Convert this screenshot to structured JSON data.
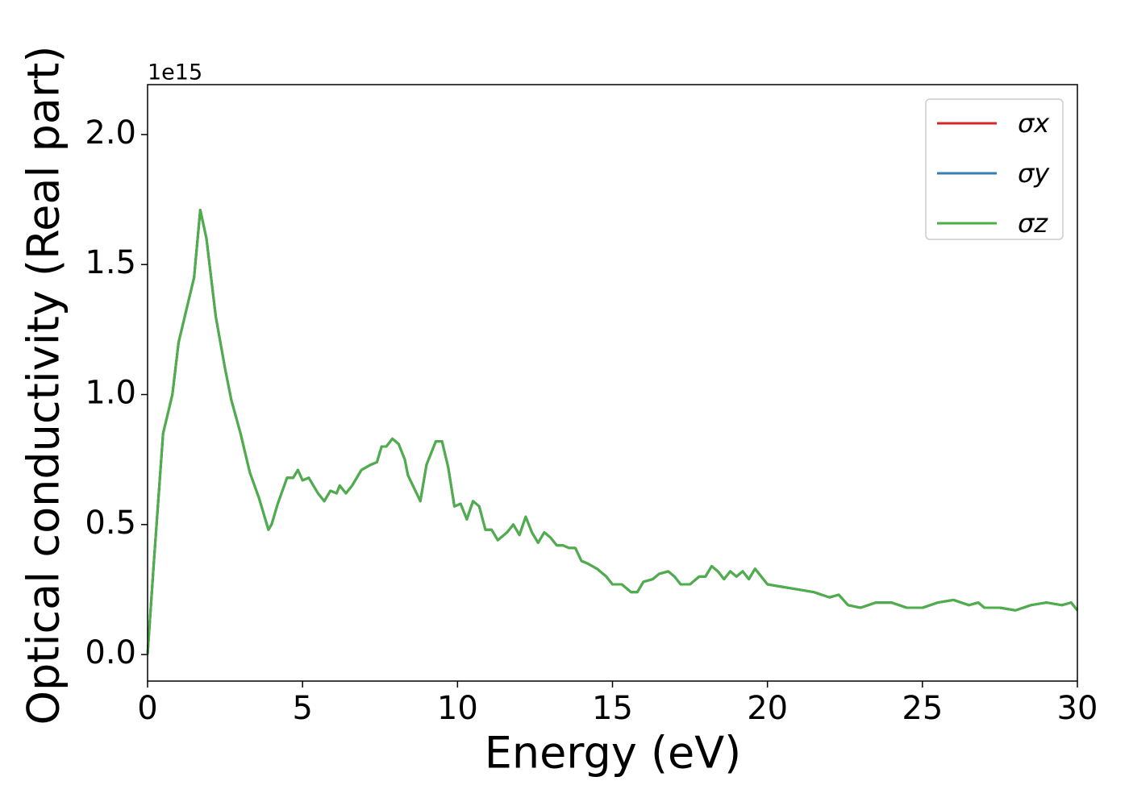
{
  "chart_data": {
    "type": "line",
    "xlabel": "Energy (eV)",
    "ylabel": "Optical conductivity (Real part)",
    "y_offset_label": "1e15",
    "x": [
      0,
      0.2,
      0.5,
      0.8,
      1.0,
      1.3,
      1.5,
      1.7,
      1.9,
      2.2,
      2.5,
      2.7,
      3.0,
      3.3,
      3.6,
      3.9,
      4.0,
      4.2,
      4.5,
      4.7,
      4.85,
      5.0,
      5.2,
      5.5,
      5.7,
      5.9,
      6.1,
      6.2,
      6.4,
      6.6,
      6.9,
      7.2,
      7.4,
      7.55,
      7.7,
      7.9,
      8.1,
      8.3,
      8.4,
      8.6,
      8.8,
      9.0,
      9.3,
      9.5,
      9.7,
      9.9,
      10.1,
      10.3,
      10.5,
      10.7,
      10.9,
      11.1,
      11.3,
      11.6,
      11.8,
      12.0,
      12.2,
      12.4,
      12.6,
      12.8,
      13.0,
      13.2,
      13.4,
      13.6,
      13.8,
      14.0,
      14.2,
      14.5,
      14.8,
      15.0,
      15.3,
      15.6,
      15.8,
      16.0,
      16.3,
      16.5,
      16.8,
      17.0,
      17.2,
      17.5,
      17.8,
      18.0,
      18.2,
      18.4,
      18.6,
      18.8,
      19.0,
      19.2,
      19.4,
      19.6,
      19.8,
      20.0,
      20.5,
      21.0,
      21.5,
      22.0,
      22.3,
      22.6,
      23.0,
      23.5,
      24.0,
      24.5,
      25.0,
      25.5,
      26.0,
      26.5,
      26.8,
      27.0,
      27.5,
      28.0,
      28.5,
      29.0,
      29.5,
      29.8,
      30.0
    ],
    "series": [
      {
        "name": "σx",
        "color": "#d62728",
        "values": [
          0,
          0.35,
          0.85,
          1.0,
          1.2,
          1.35,
          1.45,
          1.71,
          1.6,
          1.3,
          1.1,
          0.98,
          0.85,
          0.7,
          0.6,
          0.48,
          0.5,
          0.58,
          0.68,
          0.68,
          0.71,
          0.67,
          0.68,
          0.62,
          0.59,
          0.63,
          0.62,
          0.65,
          0.62,
          0.65,
          0.71,
          0.73,
          0.74,
          0.8,
          0.8,
          0.83,
          0.81,
          0.75,
          0.69,
          0.64,
          0.59,
          0.73,
          0.82,
          0.82,
          0.72,
          0.57,
          0.58,
          0.52,
          0.59,
          0.57,
          0.48,
          0.48,
          0.44,
          0.47,
          0.5,
          0.46,
          0.53,
          0.47,
          0.43,
          0.47,
          0.45,
          0.42,
          0.42,
          0.41,
          0.41,
          0.36,
          0.35,
          0.33,
          0.3,
          0.27,
          0.27,
          0.24,
          0.24,
          0.28,
          0.29,
          0.31,
          0.32,
          0.3,
          0.27,
          0.27,
          0.3,
          0.3,
          0.34,
          0.32,
          0.29,
          0.32,
          0.3,
          0.32,
          0.29,
          0.33,
          0.3,
          0.27,
          0.26,
          0.25,
          0.24,
          0.22,
          0.23,
          0.19,
          0.18,
          0.2,
          0.2,
          0.18,
          0.18,
          0.2,
          0.21,
          0.19,
          0.2,
          0.18,
          0.18,
          0.17,
          0.19,
          0.2,
          0.19,
          0.2,
          0.17
        ]
      },
      {
        "name": "σy",
        "color": "#377eb8",
        "values": [
          0,
          0.35,
          0.85,
          1.0,
          1.2,
          1.35,
          1.45,
          1.71,
          1.6,
          1.3,
          1.1,
          0.98,
          0.85,
          0.7,
          0.6,
          0.48,
          0.5,
          0.58,
          0.68,
          0.68,
          0.71,
          0.67,
          0.68,
          0.62,
          0.59,
          0.63,
          0.62,
          0.65,
          0.62,
          0.65,
          0.71,
          0.73,
          0.74,
          0.8,
          0.8,
          0.83,
          0.81,
          0.75,
          0.69,
          0.64,
          0.59,
          0.73,
          0.82,
          0.82,
          0.72,
          0.57,
          0.58,
          0.52,
          0.59,
          0.57,
          0.48,
          0.48,
          0.44,
          0.47,
          0.5,
          0.46,
          0.53,
          0.47,
          0.43,
          0.47,
          0.45,
          0.42,
          0.42,
          0.41,
          0.41,
          0.36,
          0.35,
          0.33,
          0.3,
          0.27,
          0.27,
          0.24,
          0.24,
          0.28,
          0.29,
          0.31,
          0.32,
          0.3,
          0.27,
          0.27,
          0.3,
          0.3,
          0.34,
          0.32,
          0.29,
          0.32,
          0.3,
          0.32,
          0.29,
          0.33,
          0.3,
          0.27,
          0.26,
          0.25,
          0.24,
          0.22,
          0.23,
          0.19,
          0.18,
          0.2,
          0.2,
          0.18,
          0.18,
          0.2,
          0.21,
          0.19,
          0.2,
          0.18,
          0.18,
          0.17,
          0.19,
          0.2,
          0.19,
          0.2,
          0.17
        ]
      },
      {
        "name": "σz",
        "color": "#4daf4a",
        "values": [
          0,
          0.35,
          0.85,
          1.0,
          1.2,
          1.35,
          1.45,
          1.71,
          1.6,
          1.3,
          1.1,
          0.98,
          0.85,
          0.7,
          0.6,
          0.48,
          0.5,
          0.58,
          0.68,
          0.68,
          0.71,
          0.67,
          0.68,
          0.62,
          0.59,
          0.63,
          0.62,
          0.65,
          0.62,
          0.65,
          0.71,
          0.73,
          0.74,
          0.8,
          0.8,
          0.83,
          0.81,
          0.75,
          0.69,
          0.64,
          0.59,
          0.73,
          0.82,
          0.82,
          0.72,
          0.57,
          0.58,
          0.52,
          0.59,
          0.57,
          0.48,
          0.48,
          0.44,
          0.47,
          0.5,
          0.46,
          0.53,
          0.47,
          0.43,
          0.47,
          0.45,
          0.42,
          0.42,
          0.41,
          0.41,
          0.36,
          0.35,
          0.33,
          0.3,
          0.27,
          0.27,
          0.24,
          0.24,
          0.28,
          0.29,
          0.31,
          0.32,
          0.3,
          0.27,
          0.27,
          0.3,
          0.3,
          0.34,
          0.32,
          0.29,
          0.32,
          0.3,
          0.32,
          0.29,
          0.33,
          0.3,
          0.27,
          0.26,
          0.25,
          0.24,
          0.22,
          0.23,
          0.19,
          0.18,
          0.2,
          0.2,
          0.18,
          0.18,
          0.2,
          0.21,
          0.19,
          0.2,
          0.18,
          0.18,
          0.17,
          0.19,
          0.2,
          0.19,
          0.2,
          0.17
        ]
      }
    ],
    "xlim": [
      0,
      30
    ],
    "xticks": [
      0,
      5,
      10,
      15,
      20,
      25,
      30
    ],
    "ylim": [
      -0.102,
      2.192
    ],
    "yticks": [
      {
        "value": 0,
        "label": "0.0"
      },
      0.5,
      {
        "value": 1,
        "label": "1.0"
      },
      1.5,
      {
        "value": 2,
        "label": "2.0"
      }
    ],
    "grid": false,
    "legend": "upper right"
  }
}
